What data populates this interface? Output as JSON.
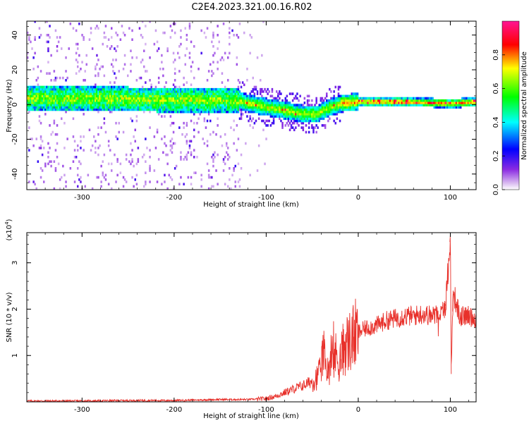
{
  "title": "C2E4.2023.321.00.16.R02",
  "chart_data": [
    {
      "type": "heatmap",
      "xlabel": "Height of straight line (km)",
      "ylabel": "Frequency (Hz)",
      "xlim": [
        -360,
        128
      ],
      "ylim": [
        -49,
        48
      ],
      "xticks": [
        -300,
        -200,
        -100,
        0,
        100
      ],
      "yticks": [
        -40,
        -20,
        0,
        20,
        40
      ],
      "grid": false,
      "colorbar": {
        "label": "Normalized spectral amplitude",
        "range": [
          0.0,
          1.0
        ],
        "ticks": [
          "0.0",
          "0.2",
          "0.4",
          "0.6",
          "0.8"
        ],
        "colormap": "rainbow",
        "colors": [
          "#ffffff",
          "#8a2be2",
          "#0000ff",
          "#00ffff",
          "#00ff00",
          "#ffff00",
          "#ff0000",
          "#ff1493"
        ]
      },
      "ridge": [
        {
          "x": -355,
          "y": 3
        },
        {
          "x": -300,
          "y": 3
        },
        {
          "x": -200,
          "y": 2
        },
        {
          "x": -150,
          "y": 2
        },
        {
          "x": -130,
          "y": 2
        },
        {
          "x": -120,
          "y": 0
        },
        {
          "x": -100,
          "y": -2
        },
        {
          "x": -80,
          "y": -4
        },
        {
          "x": -60,
          "y": -6
        },
        {
          "x": -45,
          "y": -6
        },
        {
          "x": -35,
          "y": -3
        },
        {
          "x": -20,
          "y": 0
        },
        {
          "x": 0,
          "y": 1
        },
        {
          "x": 50,
          "y": 1
        },
        {
          "x": 100,
          "y": 0
        },
        {
          "x": 128,
          "y": 1
        }
      ],
      "noise_region_x": [
        -360,
        -130
      ]
    },
    {
      "type": "line",
      "xlabel": "Height of straight line (km)",
      "ylabel": "SNR (10 * v/v)",
      "y_multiplier": "(x10",
      "y_multiplier_exp": "4",
      "y_multiplier_close": ")",
      "xlim": [
        -360,
        128
      ],
      "ylim": [
        0,
        3.65
      ],
      "xticks": [
        -300,
        -200,
        -100,
        0,
        100
      ],
      "yticks": [
        1,
        2,
        3
      ],
      "grid": false,
      "color": "#e8302a",
      "series": [
        {
          "values": [
            {
              "x": -360,
              "y": 0.02
            },
            {
              "x": -300,
              "y": 0.02
            },
            {
              "x": -250,
              "y": 0.03
            },
            {
              "x": -200,
              "y": 0.03
            },
            {
              "x": -150,
              "y": 0.05
            },
            {
              "x": -120,
              "y": 0.05
            },
            {
              "x": -100,
              "y": 0.07
            },
            {
              "x": -90,
              "y": 0.12
            },
            {
              "x": -80,
              "y": 0.2
            },
            {
              "x": -70,
              "y": 0.28
            },
            {
              "x": -60,
              "y": 0.35
            },
            {
              "x": -50,
              "y": 0.45
            },
            {
              "x": -42,
              "y": 0.6
            },
            {
              "x": -38,
              "y": 1.1
            },
            {
              "x": -35,
              "y": 0.7
            },
            {
              "x": -30,
              "y": 0.8
            },
            {
              "x": -25,
              "y": 1.0
            },
            {
              "x": -20,
              "y": 0.9
            },
            {
              "x": -15,
              "y": 1.2
            },
            {
              "x": -10,
              "y": 1.3
            },
            {
              "x": -5,
              "y": 1.4
            },
            {
              "x": 0,
              "y": 1.5
            },
            {
              "x": 10,
              "y": 1.6
            },
            {
              "x": 20,
              "y": 1.65
            },
            {
              "x": 30,
              "y": 1.75
            },
            {
              "x": 40,
              "y": 1.8
            },
            {
              "x": 50,
              "y": 1.85
            },
            {
              "x": 60,
              "y": 1.85
            },
            {
              "x": 70,
              "y": 1.9
            },
            {
              "x": 80,
              "y": 1.85
            },
            {
              "x": 90,
              "y": 1.9
            },
            {
              "x": 95,
              "y": 2.1
            },
            {
              "x": 100,
              "y": 3.6
            },
            {
              "x": 101,
              "y": 0.6
            },
            {
              "x": 103,
              "y": 2.4
            },
            {
              "x": 110,
              "y": 1.85
            },
            {
              "x": 120,
              "y": 1.85
            },
            {
              "x": 128,
              "y": 1.8
            }
          ]
        }
      ]
    }
  ]
}
